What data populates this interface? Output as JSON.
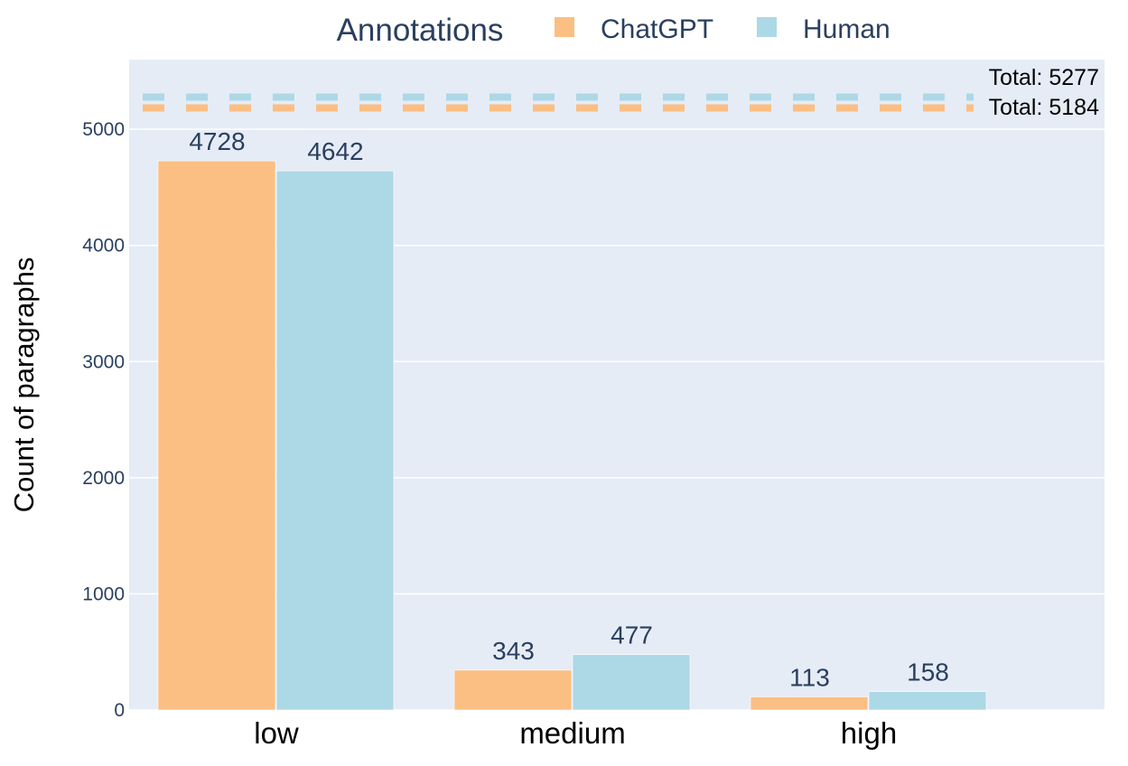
{
  "chart_data": {
    "type": "bar",
    "categories": [
      "low",
      "medium",
      "high"
    ],
    "series": [
      {
        "name": "ChatGPT",
        "values": [
          4728,
          343,
          113
        ],
        "color": "#fbbe83"
      },
      {
        "name": "Human",
        "values": [
          4642,
          477,
          158
        ],
        "color": "#add8e6"
      }
    ],
    "legend": {
      "title": "Annotations",
      "placement": "top"
    },
    "ylabel": "Count of paragraphs",
    "xlabel": "",
    "ylim": [
      0,
      5600
    ],
    "yticks": [
      0,
      1000,
      2000,
      3000,
      4000,
      5000
    ],
    "grid": true,
    "reference_lines": [
      {
        "value": 5277,
        "label": "Total: 5277",
        "color": "#add8e6",
        "style": "dashed"
      },
      {
        "value": 5184,
        "label": "Total: 5184",
        "color": "#fbbe83",
        "style": "dashed"
      }
    ],
    "plot_bg": "#e5ecf6"
  }
}
